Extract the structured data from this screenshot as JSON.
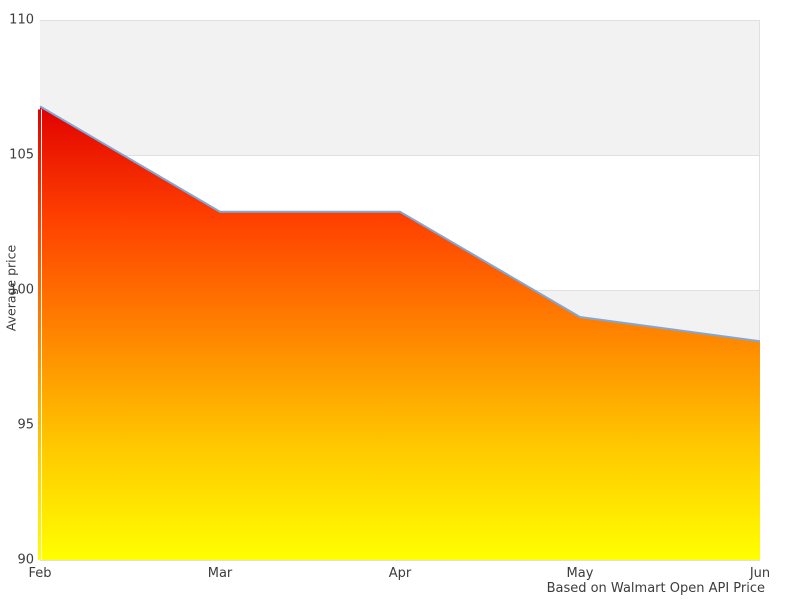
{
  "chart_data": {
    "type": "area",
    "categories": [
      "Feb",
      "Mar",
      "Apr",
      "May",
      "Jun"
    ],
    "values": [
      106.8,
      102.9,
      102.9,
      99.0,
      98.1
    ],
    "title": "",
    "xlabel": "",
    "ylabel": "Average price",
    "caption": "Based on Walmart Open API Price",
    "ylim": [
      90,
      110
    ],
    "yticks": [
      110,
      105,
      100,
      95,
      90
    ],
    "grid": "horizontal-bands-alternating",
    "legend": "none",
    "colors": {
      "line": "#7fa8d9",
      "gradient_top_to_bottom": [
        "#e00000",
        "#ff4000",
        "#ff8400",
        "#ffc800",
        "#ffff00"
      ],
      "band_gray": "#f2f2f2",
      "band_white": "#ffffff",
      "gridline": "#e0e0e0",
      "text": "#3d3d3d",
      "left_edge_gap": "#ffffff"
    }
  }
}
